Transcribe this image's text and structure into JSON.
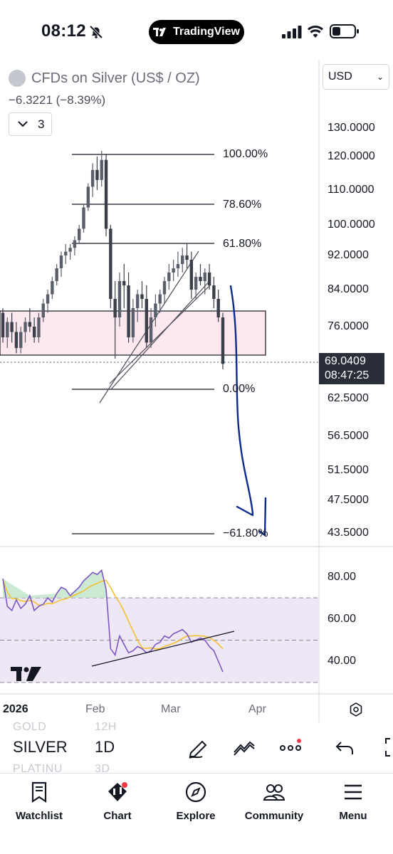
{
  "status_bar": {
    "time": "08:12",
    "app_pill": "TradingView"
  },
  "symbol": {
    "title": "CFDs on Silver (US$ / OZ)",
    "change": "−6.3221 (−8.39%)",
    "indicator_count": "3"
  },
  "currency": {
    "selected": "USD"
  },
  "price_axis": [
    "130.0000",
    "120.0000",
    "110.0000",
    "100.0000",
    "92.0000",
    "84.0000",
    "76.0000",
    "62.5000",
    "56.5000",
    "51.5000",
    "47.5000",
    "43.5000"
  ],
  "last_price": {
    "price": "69.0409",
    "countdown": "08:47:25"
  },
  "fib_levels": [
    "100.00%",
    "78.60%",
    "61.80%",
    "0.00%",
    "−61.80%"
  ],
  "rsi_axis": [
    "80.00",
    "60.00",
    "40.00"
  ],
  "time_axis": {
    "year": "2026",
    "labels": [
      "Feb",
      "Mar",
      "Apr"
    ]
  },
  "toolbar": {
    "ghost_above": [
      "GOLD",
      "12H"
    ],
    "symbol": "SILVER",
    "interval": "1D",
    "ghost_below": [
      "PLATINU",
      "3D"
    ]
  },
  "bottom_nav": [
    {
      "label": "Watchlist",
      "icon": "watchlist-icon"
    },
    {
      "label": "Chart",
      "icon": "chart-icon"
    },
    {
      "label": "Explore",
      "icon": "compass-icon"
    },
    {
      "label": "Community",
      "icon": "community-icon"
    },
    {
      "label": "Menu",
      "icon": "menu-icon"
    }
  ],
  "colors": {
    "up": "#5b5f6b",
    "down": "#3b3f4a",
    "zone": "#fce8ee",
    "annotation_blue": "#0d2a8c",
    "rsi_line": "#7e57c2",
    "rsi_ma": "#f2c230",
    "rsi_band": "#ede7f6"
  },
  "chart_data": {
    "type": "candlestick",
    "price_levels": [
      130,
      120,
      110,
      100,
      92,
      84,
      76,
      62.5,
      56.5,
      51.5,
      47.5,
      43.5
    ],
    "last_price": 69.0409,
    "fib_levels_pct": [
      100.0,
      78.6,
      61.8,
      0.0,
      -61.8
    ],
    "rsi_levels": [
      80,
      60,
      40
    ],
    "candles": [
      [
        79,
        80,
        73,
        74
      ],
      [
        74,
        78,
        72,
        77
      ],
      [
        77,
        79,
        73,
        75
      ],
      [
        75,
        77,
        71,
        72
      ],
      [
        72,
        76,
        71,
        75
      ],
      [
        75,
        78,
        73,
        77
      ],
      [
        77,
        80,
        75,
        76
      ],
      [
        76,
        78,
        73,
        74
      ],
      [
        74,
        79,
        73,
        78
      ],
      [
        78,
        82,
        77,
        81
      ],
      [
        81,
        84,
        79,
        83
      ],
      [
        83,
        87,
        82,
        86
      ],
      [
        86,
        90,
        85,
        89
      ],
      [
        89,
        93,
        87,
        92
      ],
      [
        92,
        95,
        90,
        93
      ],
      [
        93,
        95,
        91,
        94
      ],
      [
        94,
        97,
        92,
        96
      ],
      [
        96,
        100,
        95,
        99
      ],
      [
        99,
        106,
        98,
        105
      ],
      [
        105,
        112,
        104,
        111
      ],
      [
        111,
        118,
        108,
        116
      ],
      [
        116,
        120,
        110,
        113
      ],
      [
        113,
        122,
        111,
        119
      ],
      [
        119,
        121,
        97,
        99
      ],
      [
        99,
        100,
        80,
        82
      ],
      [
        82,
        86,
        70,
        78
      ],
      [
        78,
        88,
        76,
        86
      ],
      [
        86,
        90,
        80,
        85
      ],
      [
        85,
        88,
        73,
        74
      ],
      [
        74,
        82,
        73,
        80
      ],
      [
        80,
        84,
        77,
        83
      ],
      [
        83,
        86,
        80,
        82
      ],
      [
        82,
        85,
        72,
        73
      ],
      [
        73,
        80,
        72,
        78
      ],
      [
        78,
        83,
        76,
        81
      ],
      [
        81,
        84,
        79,
        83
      ],
      [
        83,
        87,
        81,
        86
      ],
      [
        86,
        90,
        84,
        88
      ],
      [
        88,
        91,
        86,
        89
      ],
      [
        89,
        93,
        87,
        90
      ],
      [
        90,
        94,
        88,
        92
      ],
      [
        92,
        95,
        89,
        91
      ],
      [
        91,
        93,
        82,
        84
      ],
      [
        84,
        88,
        82,
        87
      ],
      [
        87,
        90,
        85,
        86
      ],
      [
        86,
        89,
        83,
        88
      ],
      [
        88,
        90,
        84,
        85
      ],
      [
        85,
        87,
        80,
        82
      ],
      [
        82,
        84,
        77,
        78
      ],
      [
        78,
        79,
        68,
        69
      ]
    ],
    "rsi": [
      79,
      66,
      64,
      69,
      65,
      67,
      71,
      64,
      66,
      67,
      70,
      68,
      72,
      75,
      74,
      71,
      73,
      75,
      78,
      80,
      82,
      81,
      83,
      74,
      46,
      43,
      52,
      48,
      44,
      45,
      47,
      46,
      44,
      45,
      48,
      49,
      52,
      51,
      53,
      54,
      55,
      53,
      49,
      50,
      51,
      50,
      47,
      45,
      40,
      35
    ]
  }
}
